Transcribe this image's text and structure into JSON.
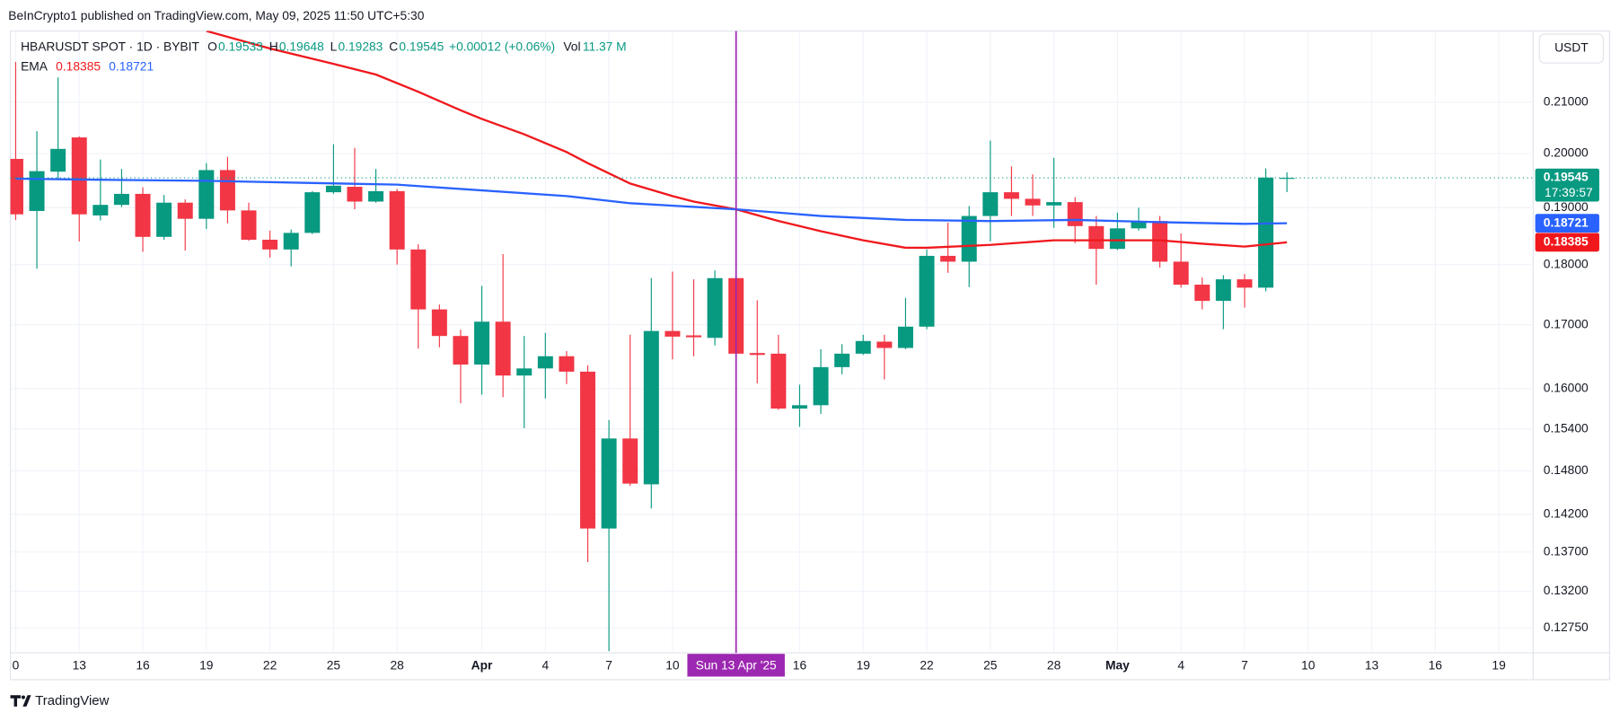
{
  "attribution": "BeInCrypto1 published on TradingView.com, May 09, 2025 11:50 UTC+5:30",
  "footer": "TradingView",
  "chart_data": {
    "type": "candlestick",
    "symbol": "HBARUSDT SPOT · 1D · BYBIT",
    "ohlc_labels": [
      "O",
      "H",
      "L",
      "C"
    ],
    "change": "+0.00012 (+0.06%)",
    "volume_label": "Vol",
    "volume": "11.37 M",
    "price_unit": "USDT",
    "last_time": "17:39:57",
    "log_scale": true,
    "grid": true,
    "up_color": "#089981",
    "down_color": "#f23645",
    "xlim": [
      -0.25,
      71.62
    ],
    "ylim": [
      0.1245,
      0.2247
    ],
    "xticks": [
      0,
      {
        "value": 3,
        "label": "13"
      },
      {
        "value": 6,
        "label": "16"
      },
      {
        "value": 9,
        "label": "19"
      },
      {
        "value": 12,
        "label": "22"
      },
      {
        "value": 15,
        "label": "25"
      },
      {
        "value": 18,
        "label": "28"
      },
      {
        "value": 22,
        "label": "Apr"
      },
      {
        "value": 25,
        "label": "4"
      },
      {
        "value": 28,
        "label": "7"
      },
      {
        "value": 31,
        "label": "10"
      },
      {
        "value": 37,
        "label": "16"
      },
      {
        "value": 40,
        "label": "19"
      },
      {
        "value": 43,
        "label": "22"
      },
      {
        "value": 46,
        "label": "25"
      },
      {
        "value": 49,
        "label": "28"
      },
      {
        "value": 52,
        "label": "May"
      },
      {
        "value": 55,
        "label": "4"
      },
      {
        "value": 58,
        "label": "7"
      },
      {
        "value": 61,
        "label": "10"
      },
      {
        "value": 64,
        "label": "13"
      },
      {
        "value": 67,
        "label": "16"
      },
      {
        "value": 70,
        "label": "19"
      }
    ],
    "yticks": [
      {
        "value": 0.21,
        "label": "0.21000"
      },
      {
        "value": 0.2,
        "label": "0.20000"
      },
      {
        "value": 0.19,
        "label": "0.19000"
      },
      {
        "value": 0.18,
        "label": "0.18000"
      },
      {
        "value": 0.17,
        "label": "0.17000"
      },
      {
        "value": 0.16,
        "label": "0.16000"
      },
      {
        "value": 0.154,
        "label": "0.15400"
      },
      {
        "value": 0.148,
        "label": "0.14800"
      },
      {
        "value": 0.142,
        "label": "0.14200"
      },
      {
        "value": 0.137,
        "label": "0.13700"
      },
      {
        "value": 0.132,
        "label": "0.13200"
      },
      {
        "value": 0.1275,
        "label": "0.12750"
      }
    ],
    "crosshair": {
      "x": 34,
      "label": "Sun 13 Apr '25",
      "color": "#9c27b0"
    },
    "candles": {
      "x": [
        0,
        1,
        2,
        3,
        4,
        5,
        6,
        7,
        8,
        9,
        10,
        11,
        12,
        13,
        14,
        15,
        16,
        17,
        18,
        19,
        20,
        21,
        22,
        23,
        24,
        25,
        26,
        27,
        28,
        29,
        30,
        31,
        32,
        33,
        34,
        35,
        36,
        37,
        38,
        39,
        40,
        41,
        42,
        43,
        44,
        45,
        46,
        47,
        48,
        49,
        50,
        51,
        52,
        53,
        54,
        55,
        56,
        57,
        58,
        59,
        60
      ],
      "open": [
        0.199,
        0.1894,
        0.1966,
        0.2031,
        0.1886,
        0.1905,
        0.1925,
        0.1848,
        0.1909,
        0.188,
        0.1969,
        0.1895,
        0.1843,
        0.1826,
        0.1855,
        0.1928,
        0.1938,
        0.1911,
        0.193,
        0.1826,
        0.1725,
        0.1682,
        0.1637,
        0.1705,
        0.162,
        0.1631,
        0.165,
        0.1626,
        0.1401,
        0.1526,
        0.1461,
        0.169,
        0.1683,
        0.1679,
        0.1777,
        0.1655,
        0.1654,
        0.157,
        0.1575,
        0.1633,
        0.1654,
        0.1673,
        0.1663,
        0.1697,
        0.1815,
        0.1805,
        0.1885,
        0.1928,
        0.1916,
        0.1904,
        0.191,
        0.1867,
        0.1827,
        0.1863,
        0.1876,
        0.1805,
        0.1766,
        0.1739,
        0.1775,
        0.1761,
        0.19533
      ],
      "high": [
        0.2182,
        0.2043,
        0.215,
        0.2033,
        0.1989,
        0.1971,
        0.1937,
        0.1923,
        0.1915,
        0.1982,
        0.1994,
        0.1909,
        0.1859,
        0.1861,
        0.193,
        0.2018,
        0.2011,
        0.1971,
        0.1934,
        0.1835,
        0.1733,
        0.1692,
        0.1764,
        0.1818,
        0.1682,
        0.1687,
        0.1658,
        0.1636,
        0.1553,
        0.1684,
        0.1777,
        0.1788,
        0.1775,
        0.179,
        0.1779,
        0.174,
        0.1684,
        0.1606,
        0.1661,
        0.1669,
        0.1684,
        0.1684,
        0.1744,
        0.1826,
        0.1873,
        0.1903,
        0.2025,
        0.1976,
        0.1961,
        0.1992,
        0.1919,
        0.1885,
        0.1891,
        0.19,
        0.1885,
        0.1854,
        0.1778,
        0.1782,
        0.1784,
        0.1972,
        0.19648
      ],
      "low": [
        0.1878,
        0.1793,
        0.1953,
        0.184,
        0.1877,
        0.1901,
        0.1822,
        0.1843,
        0.1824,
        0.1862,
        0.1872,
        0.1841,
        0.1812,
        0.1797,
        0.1853,
        0.1925,
        0.1897,
        0.1909,
        0.18,
        0.1662,
        0.1664,
        0.1578,
        0.1591,
        0.1587,
        0.1541,
        0.1585,
        0.1607,
        0.1357,
        0.1247,
        0.1459,
        0.1428,
        0.1645,
        0.165,
        0.1667,
        0.1652,
        0.1608,
        0.1568,
        0.1543,
        0.1562,
        0.1622,
        0.1652,
        0.1614,
        0.1661,
        0.1693,
        0.1786,
        0.1762,
        0.184,
        0.1885,
        0.1885,
        0.1864,
        0.1837,
        0.1766,
        0.1825,
        0.1859,
        0.1795,
        0.1761,
        0.1725,
        0.1693,
        0.1728,
        0.1755,
        0.19283
      ],
      "close": [
        0.1888,
        0.1967,
        0.2009,
        0.1888,
        0.1905,
        0.1925,
        0.1848,
        0.1909,
        0.188,
        0.1969,
        0.1895,
        0.1843,
        0.1826,
        0.1855,
        0.1928,
        0.194,
        0.1911,
        0.193,
        0.1826,
        0.1725,
        0.1682,
        0.1637,
        0.1705,
        0.162,
        0.1631,
        0.165,
        0.1626,
        0.1401,
        0.1526,
        0.1462,
        0.169,
        0.1681,
        0.168,
        0.1777,
        0.1654,
        0.1652,
        0.157,
        0.1575,
        0.1633,
        0.1654,
        0.1674,
        0.1663,
        0.1697,
        0.1815,
        0.1805,
        0.1885,
        0.1928,
        0.1916,
        0.1904,
        0.191,
        0.1867,
        0.1827,
        0.1863,
        0.1876,
        0.1805,
        0.1766,
        0.1739,
        0.1775,
        0.1761,
        0.1955,
        0.19545
      ]
    },
    "overlay": {
      "label": "EMA",
      "series": [
        {
          "color": "#f0181c",
          "x": [
            9,
            12,
            15,
            17,
            19,
            21,
            22,
            24,
            26,
            27,
            29,
            31,
            32,
            34,
            36,
            38,
            40,
            42,
            43,
            46,
            49,
            51,
            54,
            56,
            58,
            60
          ],
          "values": [
            0.2247,
            0.221,
            0.2178,
            0.2156,
            0.2121,
            0.2084,
            0.2067,
            0.2037,
            0.2003,
            0.1982,
            0.1944,
            0.1921,
            0.1911,
            0.1897,
            0.1876,
            0.1858,
            0.1842,
            0.1829,
            0.1829,
            0.1834,
            0.1842,
            0.1842,
            0.1842,
            0.1836,
            0.1831,
            0.18385
          ]
        },
        {
          "color": "#2962ff",
          "x": [
            0,
            4,
            9,
            14,
            18,
            21,
            26,
            29,
            34,
            38,
            42,
            46,
            50,
            54,
            58,
            60
          ],
          "values": [
            0.1953,
            0.1951,
            0.1949,
            0.1945,
            0.1942,
            0.1934,
            0.1921,
            0.1908,
            0.1897,
            0.1885,
            0.1878,
            0.1876,
            0.1878,
            0.1874,
            0.1871,
            0.18721
          ]
        }
      ]
    }
  }
}
